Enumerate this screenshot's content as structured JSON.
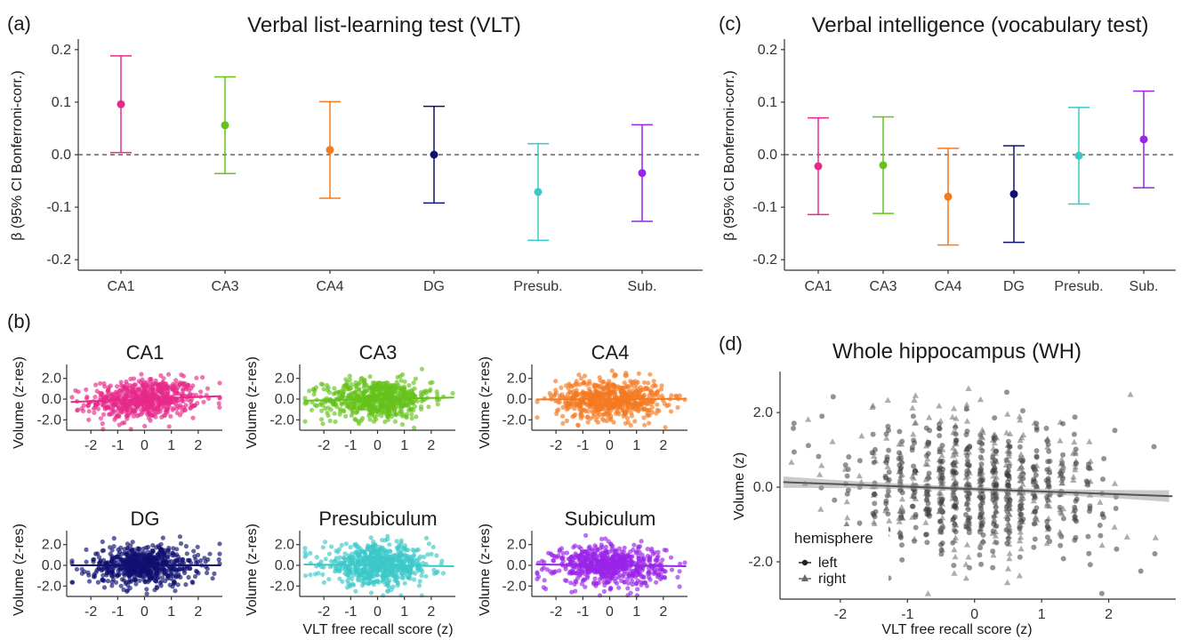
{
  "panel_labels": {
    "a": "(a)",
    "b": "(b)",
    "c": "(c)",
    "d": "(d)"
  },
  "colors": {
    "CA1": "#e7298a",
    "CA3": "#66c21a",
    "CA4": "#f47a20",
    "DG": "#101070",
    "Presub": "#3cc8c8",
    "Sub": "#9a24e8",
    "WH_points": "#3a3a3a",
    "WH_line": "#555555",
    "WH_band": "#9aa0a0"
  },
  "chart_data": [
    {
      "id": "a",
      "type": "scatter",
      "title": "Verbal list-learning test (VLT)",
      "ylabel": "β (95% CI Bonferroni-corr.)",
      "xlabel": "",
      "categories": [
        "CA1",
        "CA3",
        "CA4",
        "DG",
        "Presub.",
        "Sub."
      ],
      "estimates": [
        0.096,
        0.056,
        0.009,
        0.0,
        -0.071,
        -0.035
      ],
      "ci_low": [
        0.004,
        -0.036,
        -0.083,
        -0.092,
        -0.163,
        -0.127
      ],
      "ci_high": [
        0.188,
        0.148,
        0.101,
        0.092,
        0.021,
        0.057
      ],
      "ylim": [
        -0.22,
        0.22
      ],
      "yticks": [
        -0.2,
        -0.1,
        0.0,
        0.1,
        0.2
      ],
      "ytick_labels": [
        "-0.2",
        "-0.1",
        "0.0",
        "0.1",
        "0.2"
      ],
      "reference_line": 0,
      "grid": false
    },
    {
      "id": "c",
      "type": "scatter",
      "title": "Verbal intelligence (vocabulary test)",
      "ylabel": "β (95% CI Bonferroni-corr.)",
      "xlabel": "",
      "categories": [
        "CA1",
        "CA3",
        "CA4",
        "DG",
        "Presub.",
        "Sub."
      ],
      "estimates": [
        -0.022,
        -0.02,
        -0.08,
        -0.075,
        -0.002,
        0.029
      ],
      "ci_low": [
        -0.114,
        -0.112,
        -0.172,
        -0.167,
        -0.094,
        -0.063
      ],
      "ci_high": [
        0.07,
        0.072,
        0.012,
        0.017,
        0.09,
        0.121
      ],
      "ylim": [
        -0.22,
        0.22
      ],
      "yticks": [
        -0.2,
        -0.1,
        0.0,
        0.1,
        0.2
      ],
      "ytick_labels": [
        "-0.2",
        "-0.1",
        "0.0",
        "0.1",
        "0.2"
      ],
      "reference_line": 0,
      "grid": false
    },
    {
      "id": "b",
      "type": "scatter",
      "ylabel": "Volume (z-res)",
      "xlabel": "VLT free recall score (z)",
      "xlim": [
        -2.9,
        2.9
      ],
      "ylim": [
        -3.0,
        3.0
      ],
      "xticks": [
        -2,
        -1,
        0,
        1,
        2
      ],
      "xtick_labels": [
        "-2",
        "-1",
        "0",
        "1",
        "2"
      ],
      "yticks": [
        -2,
        0,
        2
      ],
      "ytick_labels": [
        "-2.0",
        "0.0",
        "2.0"
      ],
      "points_note": "approximately 700 jittered points per facet, x in [-2.7, 2.8], y roughly normal(0,1)",
      "facets": [
        {
          "title": "CA1",
          "slope": 0.1,
          "intercept": 0.0
        },
        {
          "title": "CA3",
          "slope": 0.055,
          "intercept": 0.0
        },
        {
          "title": "CA4",
          "slope": 0.01,
          "intercept": 0.0
        },
        {
          "title": "DG",
          "slope": 0.0,
          "intercept": 0.0
        },
        {
          "title": "Presubiculum",
          "slope": -0.03,
          "intercept": 0.0
        },
        {
          "title": "Subiculum",
          "slope": -0.03,
          "intercept": 0.0
        }
      ]
    },
    {
      "id": "d",
      "type": "scatter",
      "title": "Whole hippocampus (WH)",
      "ylabel": "Volume (z)",
      "xlabel": "VLT free recall score (z)",
      "xlim": [
        -2.9,
        3.0
      ],
      "ylim": [
        -3.0,
        3.1
      ],
      "xticks": [
        -2,
        -1,
        0,
        1,
        2
      ],
      "xtick_labels": [
        "-2",
        "-1",
        "0",
        "1",
        "2"
      ],
      "yticks": [
        -2,
        0,
        2
      ],
      "ytick_labels": [
        "-2.0",
        "0.0",
        "2.0"
      ],
      "legend": {
        "title": "hemisphere",
        "entries": [
          "left",
          "right"
        ],
        "position": "bottom-left"
      },
      "fit": {
        "slope": -0.065,
        "intercept": -0.05,
        "band_halfwidth_edge": 0.16,
        "band_halfwidth_center": 0.06
      },
      "points_note": "approximately 900 points (circles=left, triangles=right) at discrete recall-score columns"
    }
  ]
}
